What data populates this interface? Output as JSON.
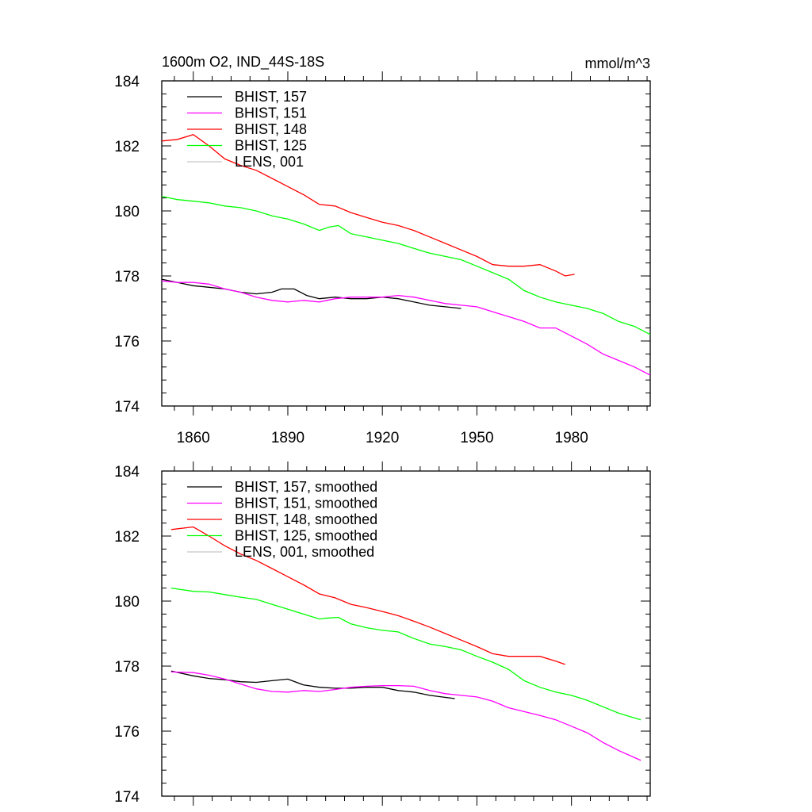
{
  "figure": {
    "title_left": "1600m O2, IND_44S-18S",
    "title_right": "mmol/m^3"
  },
  "chart_data": [
    {
      "type": "line",
      "panel": "top",
      "xlim": [
        1850,
        2005
      ],
      "ylim": [
        174,
        184
      ],
      "x_ticks": [
        1860,
        1890,
        1920,
        1950,
        1980
      ],
      "x_tick_labels": [
        "1860",
        "1890",
        "1920",
        "1950",
        "1980"
      ],
      "y_ticks": [
        174,
        176,
        178,
        180,
        182,
        184
      ],
      "y_tick_labels": [
        "174",
        "176",
        "178",
        "180",
        "182",
        "184"
      ],
      "legend_position": "top-left",
      "series": [
        {
          "name": "BHIST, 157",
          "color": "#000000",
          "x": [
            1850,
            1855,
            1860,
            1865,
            1870,
            1875,
            1880,
            1885,
            1888,
            1892,
            1896,
            1900,
            1905,
            1910,
            1915,
            1920,
            1925,
            1930,
            1935,
            1940,
            1945
          ],
          "y": [
            177.9,
            177.8,
            177.7,
            177.65,
            177.6,
            177.5,
            177.45,
            177.5,
            177.6,
            177.6,
            177.4,
            177.3,
            177.35,
            177.3,
            177.3,
            177.35,
            177.3,
            177.2,
            177.1,
            177.05,
            177.0
          ]
        },
        {
          "name": "BHIST, 151",
          "color": "#ff00ff",
          "x": [
            1850,
            1855,
            1860,
            1865,
            1870,
            1875,
            1880,
            1885,
            1890,
            1895,
            1900,
            1905,
            1910,
            1915,
            1920,
            1925,
            1930,
            1935,
            1940,
            1945,
            1950,
            1955,
            1960,
            1965,
            1970,
            1975,
            1980,
            1985,
            1990,
            1995,
            2000,
            2005
          ],
          "y": [
            177.85,
            177.8,
            177.8,
            177.75,
            177.6,
            177.5,
            177.35,
            177.25,
            177.2,
            177.25,
            177.2,
            177.3,
            177.35,
            177.35,
            177.35,
            177.4,
            177.35,
            177.25,
            177.15,
            177.1,
            177.05,
            176.9,
            176.75,
            176.6,
            176.4,
            176.4,
            176.15,
            175.9,
            175.6,
            175.4,
            175.2,
            174.95
          ]
        },
        {
          "name": "BHIST, 148",
          "color": "#ff0000",
          "x": [
            1850,
            1855,
            1860,
            1865,
            1870,
            1875,
            1880,
            1885,
            1890,
            1895,
            1900,
            1905,
            1910,
            1915,
            1920,
            1925,
            1930,
            1935,
            1940,
            1945,
            1950,
            1955,
            1960,
            1965,
            1970,
            1975,
            1978,
            1981
          ],
          "y": [
            182.15,
            182.2,
            182.35,
            182.0,
            181.6,
            181.4,
            181.25,
            181.0,
            180.75,
            180.5,
            180.2,
            180.15,
            179.95,
            179.8,
            179.65,
            179.55,
            179.4,
            179.2,
            179.0,
            178.8,
            178.6,
            178.35,
            178.3,
            178.3,
            178.35,
            178.15,
            178.0,
            178.05
          ]
        },
        {
          "name": "BHIST, 125",
          "color": "#00ff00",
          "x": [
            1850,
            1855,
            1860,
            1865,
            1870,
            1875,
            1880,
            1885,
            1890,
            1895,
            1900,
            1903,
            1906,
            1910,
            1915,
            1920,
            1925,
            1930,
            1935,
            1940,
            1945,
            1950,
            1955,
            1960,
            1965,
            1970,
            1975,
            1980,
            1985,
            1990,
            1995,
            2000,
            2005
          ],
          "y": [
            180.45,
            180.35,
            180.3,
            180.25,
            180.15,
            180.1,
            180.0,
            179.85,
            179.75,
            179.6,
            179.4,
            179.5,
            179.55,
            179.3,
            179.2,
            179.1,
            179.0,
            178.85,
            178.7,
            178.6,
            178.5,
            178.3,
            178.1,
            177.9,
            177.55,
            177.35,
            177.2,
            177.1,
            177.0,
            176.85,
            176.6,
            176.45,
            176.2
          ]
        },
        {
          "name": "LENS, 001",
          "color": "#c8c8c8",
          "x": [],
          "y": []
        }
      ]
    },
    {
      "type": "line",
      "panel": "bottom",
      "xlim": [
        1850,
        2005
      ],
      "ylim": [
        174,
        184
      ],
      "x_ticks": [
        1860,
        1890,
        1920,
        1950,
        1980
      ],
      "y_ticks": [
        174,
        176,
        178,
        180,
        182,
        184
      ],
      "y_tick_labels": [
        "174",
        "176",
        "178",
        "180",
        "182",
        "184"
      ],
      "legend_position": "top-left",
      "series": [
        {
          "name": "BHIST, 157, smoothed",
          "color": "#000000",
          "x": [
            1853,
            1860,
            1865,
            1870,
            1875,
            1880,
            1885,
            1890,
            1895,
            1900,
            1905,
            1910,
            1915,
            1920,
            1925,
            1930,
            1935,
            1943
          ],
          "y": [
            177.85,
            177.7,
            177.62,
            177.58,
            177.52,
            177.5,
            177.55,
            177.6,
            177.42,
            177.35,
            177.32,
            177.32,
            177.35,
            177.35,
            177.25,
            177.2,
            177.1,
            177.0
          ]
        },
        {
          "name": "BHIST, 151, smoothed",
          "color": "#ff00ff",
          "x": [
            1853,
            1860,
            1865,
            1870,
            1875,
            1880,
            1885,
            1890,
            1895,
            1900,
            1905,
            1910,
            1915,
            1920,
            1925,
            1930,
            1935,
            1940,
            1945,
            1950,
            1955,
            1960,
            1965,
            1970,
            1975,
            1980,
            1985,
            1990,
            1995,
            2002
          ],
          "y": [
            177.82,
            177.8,
            177.72,
            177.6,
            177.45,
            177.3,
            177.22,
            177.2,
            177.25,
            177.22,
            177.28,
            177.35,
            177.38,
            177.4,
            177.4,
            177.38,
            177.25,
            177.15,
            177.1,
            177.05,
            176.92,
            176.72,
            176.6,
            176.48,
            176.35,
            176.15,
            175.95,
            175.65,
            175.4,
            175.1
          ]
        },
        {
          "name": "BHIST, 148, smoothed",
          "color": "#ff0000",
          "x": [
            1853,
            1860,
            1865,
            1870,
            1875,
            1880,
            1885,
            1890,
            1895,
            1900,
            1905,
            1910,
            1915,
            1920,
            1925,
            1930,
            1935,
            1940,
            1945,
            1950,
            1955,
            1960,
            1965,
            1970,
            1975,
            1978
          ],
          "y": [
            182.2,
            182.28,
            182.0,
            181.7,
            181.45,
            181.25,
            181.0,
            180.75,
            180.5,
            180.22,
            180.1,
            179.9,
            179.8,
            179.68,
            179.55,
            179.38,
            179.2,
            179.0,
            178.8,
            178.6,
            178.38,
            178.3,
            178.3,
            178.3,
            178.15,
            178.05
          ]
        },
        {
          "name": "BHIST, 125, smoothed",
          "color": "#00ff00",
          "x": [
            1853,
            1860,
            1865,
            1870,
            1875,
            1880,
            1885,
            1890,
            1895,
            1900,
            1903,
            1906,
            1910,
            1915,
            1920,
            1925,
            1930,
            1935,
            1940,
            1945,
            1950,
            1955,
            1960,
            1965,
            1970,
            1975,
            1980,
            1985,
            1990,
            1995,
            2002
          ],
          "y": [
            180.4,
            180.3,
            180.28,
            180.2,
            180.12,
            180.05,
            179.9,
            179.75,
            179.6,
            179.45,
            179.48,
            179.5,
            179.3,
            179.18,
            179.1,
            179.05,
            178.85,
            178.68,
            178.6,
            178.5,
            178.3,
            178.12,
            177.9,
            177.55,
            177.35,
            177.2,
            177.1,
            176.95,
            176.75,
            176.55,
            176.35
          ]
        },
        {
          "name": "LENS, 001, smoothed",
          "color": "#c8c8c8",
          "x": [],
          "y": []
        }
      ]
    }
  ]
}
